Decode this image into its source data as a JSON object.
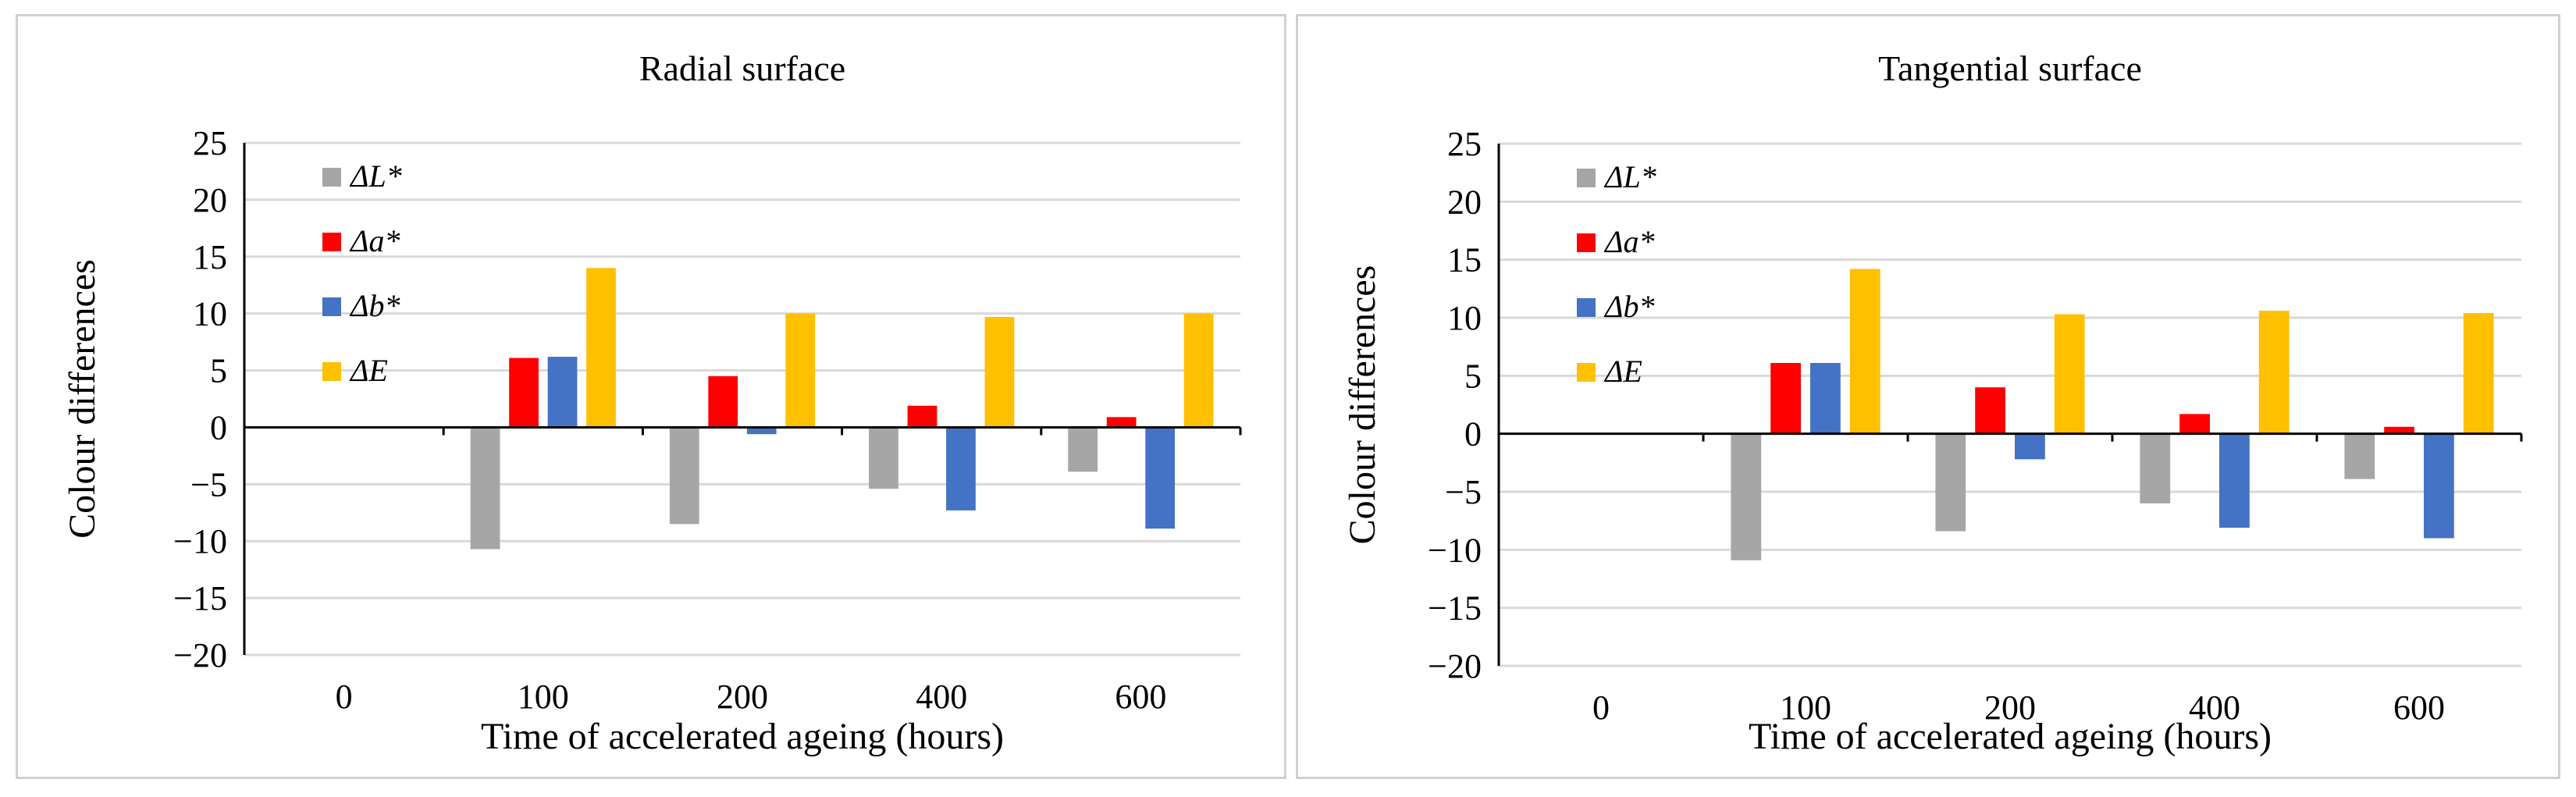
{
  "chart_data": [
    {
      "type": "bar",
      "title": "Radial surface",
      "xlabel": "Time of accelerated ageing (hours)",
      "ylabel": "Colour differences",
      "categories": [
        "0",
        "100",
        "200",
        "400",
        "600"
      ],
      "ylim": [
        -20,
        25
      ],
      "yticks": [
        25,
        20,
        15,
        10,
        5,
        0,
        -5,
        -10,
        -15,
        -20
      ],
      "ytick_labels": [
        "25",
        "20",
        "15",
        "10",
        "5",
        "0",
        "−5",
        "−10",
        "−15",
        "−20"
      ],
      "grid": true,
      "legend_position": "top-left",
      "series": [
        {
          "name": "ΔL*",
          "color": "#a6a6a6",
          "values": [
            0,
            -10.7,
            -8.5,
            -5.4,
            -3.9
          ]
        },
        {
          "name": "Δa*",
          "color": "#ff0000",
          "values": [
            0,
            6.1,
            4.5,
            1.9,
            0.9
          ]
        },
        {
          "name": "Δb*",
          "color": "#4472c4",
          "values": [
            0,
            6.2,
            -0.6,
            -7.3,
            -8.9
          ]
        },
        {
          "name": "ΔE",
          "color": "#ffc000",
          "values": [
            0,
            14.0,
            10.0,
            9.7,
            10.0
          ]
        }
      ]
    },
    {
      "type": "bar",
      "title": "Tangential surface",
      "xlabel": "Time of accelerated ageing (hours)",
      "ylabel": "Colour differences",
      "categories": [
        "0",
        "100",
        "200",
        "400",
        "600"
      ],
      "ylim": [
        -20,
        25
      ],
      "yticks": [
        25,
        20,
        15,
        10,
        5,
        0,
        -5,
        -10,
        -15,
        -20
      ],
      "ytick_labels": [
        "25",
        "20",
        "15",
        "10",
        "5",
        "0",
        "−5",
        "−10",
        "−15",
        "−20"
      ],
      "grid": true,
      "legend_position": "top-left",
      "series": [
        {
          "name": "ΔL*",
          "color": "#a6a6a6",
          "values": [
            0,
            -10.9,
            -8.4,
            -6.0,
            -3.9
          ]
        },
        {
          "name": "Δa*",
          "color": "#ff0000",
          "values": [
            0,
            6.1,
            4.0,
            1.7,
            0.6
          ]
        },
        {
          "name": "Δb*",
          "color": "#4472c4",
          "values": [
            0,
            6.1,
            -2.2,
            -8.1,
            -9.0
          ]
        },
        {
          "name": "ΔE",
          "color": "#ffc000",
          "values": [
            0,
            14.2,
            10.3,
            10.6,
            10.4
          ]
        }
      ]
    }
  ]
}
